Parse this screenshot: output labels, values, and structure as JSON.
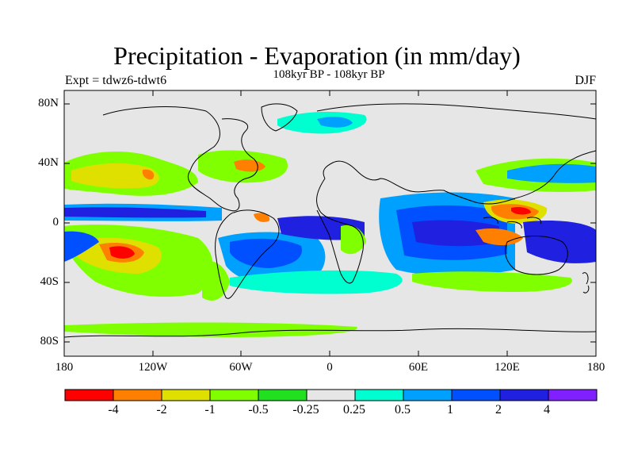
{
  "title": "Precipitation - Evaporation (in mm/day)",
  "subtitle": "108kyr BP - 108kyr BP",
  "left_label": "Expt = tdwz6-tdwt6",
  "right_label": "DJF",
  "colors": {
    "land": "#e6e6e6",
    "coast": "#000000",
    "scale": [
      "#ff0000",
      "#ff8000",
      "#e0e000",
      "#80ff00",
      "#20e020",
      "#e6e6e6",
      "#00ffd0",
      "#00a0ff",
      "#0050ff",
      "#2020e0",
      "#8020ff"
    ]
  },
  "lat_labels": [
    "80N",
    "40N",
    "0",
    "40S",
    "80S"
  ],
  "lon_labels": [
    "180",
    "120W",
    "60W",
    "0",
    "60E",
    "120E",
    "180"
  ],
  "colorbar_labels": [
    "-4",
    "-2",
    "-1",
    "-0.5",
    "-0.25",
    "0.25",
    "0.5",
    "1",
    "2",
    "4"
  ],
  "regions": [
    {
      "name": "tropical-pacific-south-dry",
      "color": "#ff0000"
    },
    {
      "name": "pacific-north-dry",
      "color": "#e0e000"
    },
    {
      "name": "equatorial-pacific-wet",
      "color": "#0050ff"
    },
    {
      "name": "south-atlantic-wet",
      "color": "#0050ff"
    },
    {
      "name": "indian-ocean-wet",
      "color": "#2020e0"
    },
    {
      "name": "maritime-continent-dry",
      "color": "#ff8000"
    },
    {
      "name": "north-atlantic-dry",
      "color": "#ff8000"
    },
    {
      "name": "southern-ocean-moist",
      "color": "#00ffd0"
    }
  ]
}
